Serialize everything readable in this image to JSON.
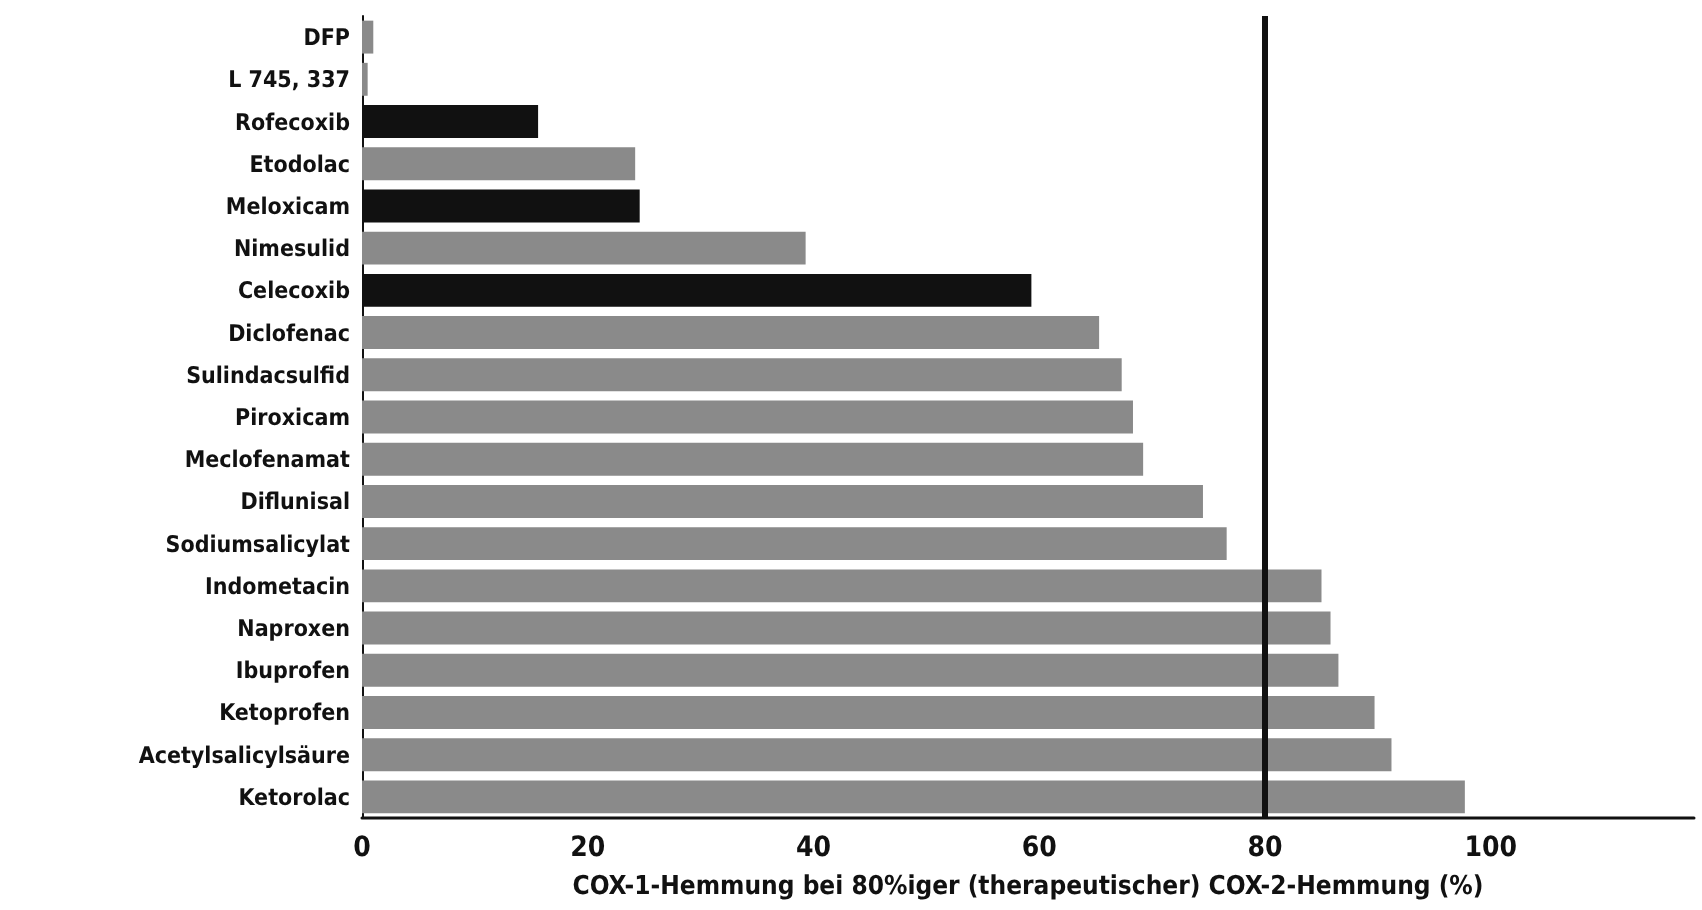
{
  "chart_data": {
    "type": "bar",
    "orientation": "horizontal",
    "xlabel": "COX-1-Hemmung bei 80%iger (therapeutischer) COX-2-Hemmung (%)",
    "categories": [
      "DFP",
      "L 745, 337",
      "Rofecoxib",
      "Etodolac",
      "Meloxicam",
      "Nimesulid",
      "Celecoxib",
      "Diclofenac",
      "Sulindacsulfid",
      "Piroxicam",
      "Meclofenamat",
      "Diflunisal",
      "Sodiumsalicylat",
      "Indometacin",
      "Naproxen",
      "Ibuprofen",
      "Ketoprofen",
      "Acetylsalicylsäure",
      "Ketorolac"
    ],
    "values": [
      1,
      0.5,
      15.6,
      24.2,
      24.6,
      39.3,
      59.3,
      65.3,
      67.3,
      68.3,
      69.2,
      74.5,
      76.6,
      85,
      85.8,
      86.5,
      89.7,
      91.2,
      97.7
    ],
    "colors": [
      "#8a8a8a",
      "#8a8a8a",
      "#111111",
      "#8a8a8a",
      "#111111",
      "#8a8a8a",
      "#111111",
      "#8a8a8a",
      "#8a8a8a",
      "#8a8a8a",
      "#8a8a8a",
      "#8a8a8a",
      "#8a8a8a",
      "#8a8a8a",
      "#8a8a8a",
      "#8a8a8a",
      "#8a8a8a",
      "#8a8a8a",
      "#8a8a8a"
    ],
    "xlim": [
      0,
      118
    ],
    "xticks": [
      0,
      20,
      40,
      60,
      80,
      100
    ],
    "ref_lines": [
      {
        "axis": "x",
        "value": 80,
        "color": "#111111",
        "line_style": "solid"
      }
    ]
  }
}
